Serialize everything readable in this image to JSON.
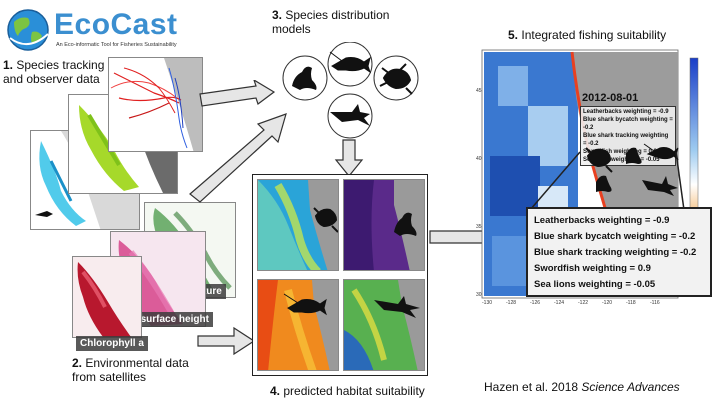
{
  "logo": {
    "name": "EcoCast",
    "tagline": "An Eco-informatic Tool for Fisheries Sustainability"
  },
  "steps": {
    "s1": {
      "num": "1.",
      "text": "Species tracking and observer data"
    },
    "s2": {
      "num": "2.",
      "text": "Environmental data from satellites"
    },
    "s3": {
      "num": "3.",
      "text": "Species distribution models"
    },
    "s4": {
      "num": "4.",
      "text": "predicted habitat suitability"
    },
    "s5": {
      "num": "5.",
      "text": "Integrated fishing suitability"
    }
  },
  "env_layers": {
    "temperature": "Temperature",
    "ssh": "Sea surface height",
    "chl": "Chlorophyll a"
  },
  "output_map": {
    "date": "2012-08-01",
    "y_ticks": [
      "45",
      "40",
      "35",
      "30"
    ],
    "x_ticks": [
      "-130",
      "-128",
      "-126",
      "-124",
      "-122",
      "-120",
      "-118",
      "-116"
    ]
  },
  "weights": [
    "Leatherbacks weighting = -0.9",
    "Blue shark bycatch weighting = -0.2",
    "Blue shark tracking weighting = -0.2",
    "Swordfish weighting = 0.9",
    "Sea lions weighting = -0.05"
  ],
  "citation": {
    "authors": "Hazen et al. 2018 ",
    "journal": "Science Advances"
  }
}
